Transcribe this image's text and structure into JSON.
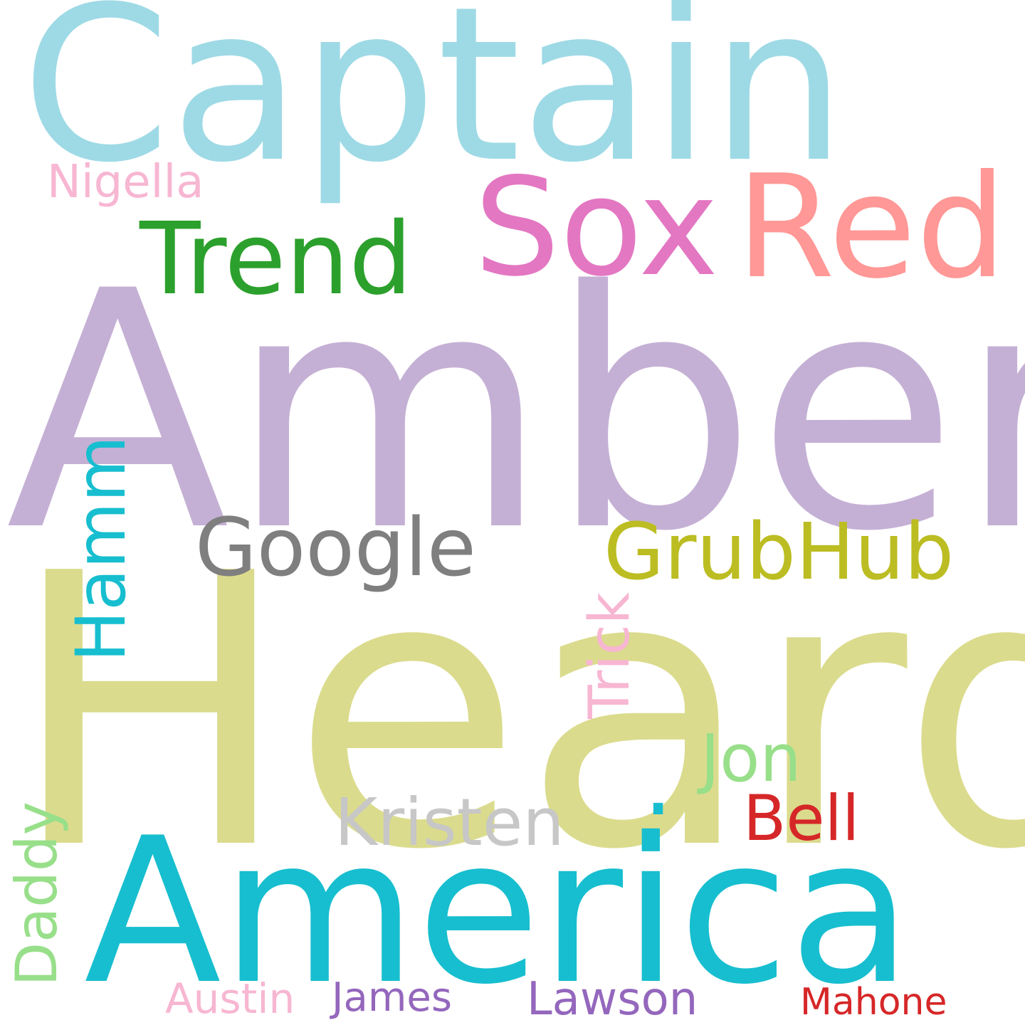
{
  "words": [
    {
      "text": "Heard",
      "color": "#dbdb8d"
    },
    {
      "text": "Amber",
      "color": "#c5b0d5"
    },
    {
      "text": "Captain",
      "color": "#9edae5"
    },
    {
      "text": "America",
      "color": "#17becf"
    },
    {
      "text": "Sox",
      "color": "#e377c2"
    },
    {
      "text": "Red",
      "color": "#ff9896"
    },
    {
      "text": "Trend",
      "color": "#2ca02c"
    },
    {
      "text": "Google",
      "color": "#7f7f7f"
    },
    {
      "text": "GrubHub",
      "color": "#bcbd22"
    },
    {
      "text": "Hamm",
      "color": "#17becf"
    },
    {
      "text": "Trick",
      "color": "#f7b6d2"
    },
    {
      "text": "Kristen",
      "color": "#c7c7c7"
    },
    {
      "text": "Jon",
      "color": "#98df8a"
    },
    {
      "text": "Bell",
      "color": "#d62728"
    },
    {
      "text": "Daddy",
      "color": "#98df8a"
    },
    {
      "text": "Nigella",
      "color": "#f7b6d2"
    },
    {
      "text": "Austin",
      "color": "#f7b6d2"
    },
    {
      "text": "James",
      "color": "#9467bd"
    },
    {
      "text": "Lawson",
      "color": "#9467bd"
    },
    {
      "text": "Mahone",
      "color": "#d62728"
    },
    {
      "text": ".",
      "color": "#17becf"
    }
  ]
}
